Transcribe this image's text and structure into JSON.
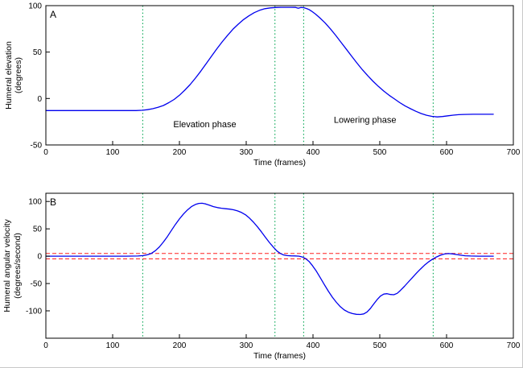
{
  "figure": {
    "background": "#ffffff"
  },
  "chart_data": [
    {
      "type": "line",
      "panel_label": "A",
      "title": "",
      "xlabel": "Time (frames)",
      "ylabel_lines": [
        "Humeral elevation",
        "(degrees)"
      ],
      "xlim": [
        0,
        700
      ],
      "ylim": [
        -50,
        100
      ],
      "xticks": [
        0,
        100,
        200,
        300,
        400,
        500,
        600,
        700
      ],
      "yticks": [
        -50,
        0,
        50,
        100
      ],
      "grid": false,
      "legend": "none",
      "line_color": "#0000ee",
      "vlines": {
        "x": [
          145,
          343,
          386,
          580
        ],
        "color": "#00a550",
        "style": "dotted"
      },
      "annotations": [
        {
          "text": "Elevation phase",
          "x": 238,
          "y": -31
        },
        {
          "text": "Lowering phase",
          "x": 478,
          "y": -26
        }
      ],
      "series": [
        {
          "name": "humeral-elevation",
          "points": [
            [
              0,
              -13
            ],
            [
              60,
              -13
            ],
            [
              110,
              -13
            ],
            [
              135,
              -13
            ],
            [
              145,
              -12.6
            ],
            [
              152,
              -12
            ],
            [
              160,
              -11
            ],
            [
              168,
              -9.5
            ],
            [
              176,
              -7.5
            ],
            [
              184,
              -4.5
            ],
            [
              192,
              -1
            ],
            [
              200,
              3.5
            ],
            [
              208,
              9
            ],
            [
              216,
              15
            ],
            [
              224,
              22
            ],
            [
              232,
              29.5
            ],
            [
              240,
              37.5
            ],
            [
              248,
              45.5
            ],
            [
              256,
              53.5
            ],
            [
              264,
              61
            ],
            [
              272,
              68
            ],
            [
              280,
              74.5
            ],
            [
              288,
              80
            ],
            [
              296,
              85
            ],
            [
              304,
              89
            ],
            [
              312,
              92.5
            ],
            [
              320,
              95
            ],
            [
              328,
              96.7
            ],
            [
              336,
              97.6
            ],
            [
              344,
              98
            ],
            [
              352,
              98.2
            ],
            [
              360,
              98.2
            ],
            [
              368,
              98.2
            ],
            [
              374,
              98.1
            ],
            [
              378,
              97.2
            ],
            [
              382,
              98
            ],
            [
              386,
              97.8
            ],
            [
              390,
              97
            ],
            [
              394,
              95.8
            ],
            [
              398,
              94
            ],
            [
              404,
              90.8
            ],
            [
              410,
              87
            ],
            [
              418,
              81.5
            ],
            [
              426,
              75
            ],
            [
              434,
              68
            ],
            [
              442,
              60.5
            ],
            [
              450,
              53
            ],
            [
              458,
              45.5
            ],
            [
              466,
              38
            ],
            [
              474,
              31
            ],
            [
              482,
              24.5
            ],
            [
              490,
              18.5
            ],
            [
              498,
              13
            ],
            [
              506,
              8
            ],
            [
              514,
              3.5
            ],
            [
              522,
              -0.5
            ],
            [
              530,
              -4.5
            ],
            [
              538,
              -8
            ],
            [
              546,
              -11
            ],
            [
              554,
              -13.8
            ],
            [
              562,
              -16.2
            ],
            [
              570,
              -18
            ],
            [
              578,
              -19.2
            ],
            [
              586,
              -19.8
            ],
            [
              594,
              -19.4
            ],
            [
              602,
              -18.6
            ],
            [
              610,
              -17.9
            ],
            [
              618,
              -17.4
            ],
            [
              626,
              -17.1
            ],
            [
              640,
              -17
            ],
            [
              670,
              -17
            ]
          ]
        }
      ]
    },
    {
      "type": "line",
      "panel_label": "B",
      "title": "",
      "xlabel": "Time (frames)",
      "ylabel_lines": [
        "Humeral angular velocity",
        "(degrees/second)"
      ],
      "xlim": [
        0,
        700
      ],
      "ylim": [
        -150,
        115
      ],
      "xticks": [
        0,
        100,
        200,
        300,
        400,
        500,
        600,
        700
      ],
      "yticks": [
        -100,
        -50,
        0,
        50,
        100
      ],
      "grid": false,
      "legend": "none",
      "line_color": "#0000ee",
      "vlines": {
        "x": [
          145,
          343,
          386,
          580
        ],
        "color": "#00a550",
        "style": "dotted"
      },
      "hlines": {
        "y": [
          5,
          -5
        ],
        "color": "#ff2020",
        "style": "dashed"
      },
      "annotations": [],
      "series": [
        {
          "name": "humeral-angular-velocity",
          "points": [
            [
              0,
              0
            ],
            [
              80,
              0
            ],
            [
              120,
              0
            ],
            [
              138,
              0.3
            ],
            [
              146,
              1
            ],
            [
              152,
              2.5
            ],
            [
              158,
              5
            ],
            [
              164,
              10
            ],
            [
              170,
              17
            ],
            [
              176,
              26
            ],
            [
              182,
              36
            ],
            [
              188,
              47
            ],
            [
              194,
              58
            ],
            [
              200,
              68
            ],
            [
              206,
              77
            ],
            [
              212,
              84.5
            ],
            [
              218,
              90.5
            ],
            [
              224,
              94.5
            ],
            [
              229,
              96.5
            ],
            [
              234,
              96.8
            ],
            [
              239,
              95.5
            ],
            [
              245,
              93
            ],
            [
              251,
              90.5
            ],
            [
              257,
              88.8
            ],
            [
              263,
              87.6
            ],
            [
              269,
              86.8
            ],
            [
              275,
              86
            ],
            [
              281,
              84.8
            ],
            [
              287,
              82.8
            ],
            [
              293,
              79.8
            ],
            [
              299,
              75.5
            ],
            [
              305,
              69.5
            ],
            [
              311,
              62
            ],
            [
              317,
              53.5
            ],
            [
              323,
              44
            ],
            [
              329,
              34
            ],
            [
              335,
              24.5
            ],
            [
              341,
              16
            ],
            [
              346,
              9.5
            ],
            [
              351,
              5
            ],
            [
              356,
              2.2
            ],
            [
              361,
              1
            ],
            [
              367,
              0.6
            ],
            [
              373,
              0.4
            ],
            [
              379,
              0
            ],
            [
              384,
              -1.5
            ],
            [
              389,
              -4.5
            ],
            [
              394,
              -9.5
            ],
            [
              399,
              -17
            ],
            [
              405,
              -27.5
            ],
            [
              411,
              -39.5
            ],
            [
              417,
              -52
            ],
            [
              423,
              -64
            ],
            [
              429,
              -75
            ],
            [
              435,
              -84.5
            ],
            [
              441,
              -92.5
            ],
            [
              447,
              -98.5
            ],
            [
              453,
              -102.5
            ],
            [
              459,
              -105
            ],
            [
              465,
              -106.3
            ],
            [
              471,
              -106.6
            ],
            [
              476,
              -105.5
            ],
            [
              481,
              -102
            ],
            [
              486,
              -95.5
            ],
            [
              491,
              -87.5
            ],
            [
              496,
              -79.5
            ],
            [
              501,
              -73
            ],
            [
              506,
              -69.3
            ],
            [
              511,
              -68.6
            ],
            [
              516,
              -70
            ],
            [
              521,
              -70.5
            ],
            [
              526,
              -68
            ],
            [
              531,
              -62.5
            ],
            [
              537,
              -55
            ],
            [
              543,
              -47
            ],
            [
              549,
              -39
            ],
            [
              555,
              -31
            ],
            [
              561,
              -23.5
            ],
            [
              567,
              -16.5
            ],
            [
              573,
              -10.5
            ],
            [
              579,
              -5.5
            ],
            [
              585,
              -1.5
            ],
            [
              591,
              1.8
            ],
            [
              597,
              4
            ],
            [
              603,
              4.8
            ],
            [
              609,
              4.2
            ],
            [
              615,
              3
            ],
            [
              621,
              1.8
            ],
            [
              628,
              0.8
            ],
            [
              636,
              0.3
            ],
            [
              648,
              0
            ],
            [
              670,
              0
            ]
          ]
        }
      ]
    }
  ]
}
